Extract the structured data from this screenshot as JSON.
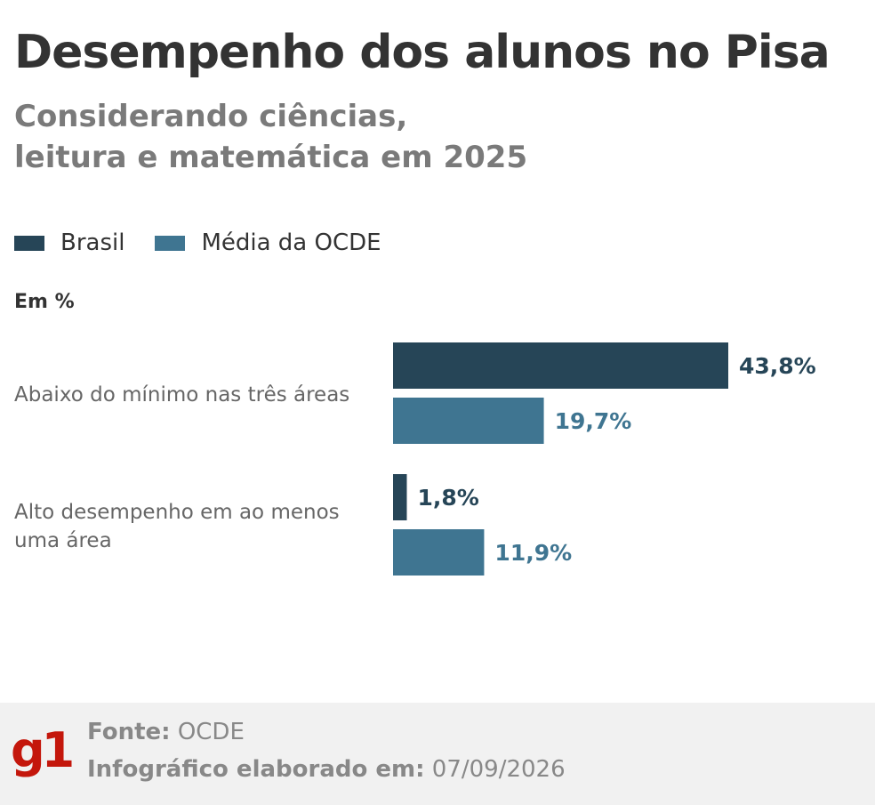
{
  "title": "Desempenho dos alunos no Pisa",
  "subtitle_lines": [
    "Considerando ciências,",
    "leitura e matemática em 2025"
  ],
  "legend": [
    {
      "label": "Brasil",
      "color": "#264557"
    },
    {
      "label": "Média da OCDE",
      "color": "#3f7591"
    }
  ],
  "unit_label": "Em %",
  "chart_data": {
    "type": "bar",
    "orientation": "horizontal",
    "categories": [
      [
        "Abaixo do mínimo nas três áreas"
      ],
      [
        "Alto desempenho em ao menos",
        "uma área"
      ]
    ],
    "series": [
      {
        "name": "Brasil",
        "values": [
          43.8,
          1.8
        ],
        "labels": [
          "43,8%",
          "1,8%"
        ],
        "color": "#264557"
      },
      {
        "name": "Média da OCDE",
        "values": [
          19.7,
          11.9
        ],
        "labels": [
          "19,7%",
          "11,9%"
        ],
        "color": "#3f7591"
      }
    ],
    "ylabel": "Em %"
  },
  "footer": {
    "source_label": "Fonte:",
    "source_value": "OCDE",
    "date_label": "Infográfico elaborado em:",
    "date_value": "07/09/2026",
    "logo_text": "g1",
    "logo_color": "#c4170c"
  }
}
